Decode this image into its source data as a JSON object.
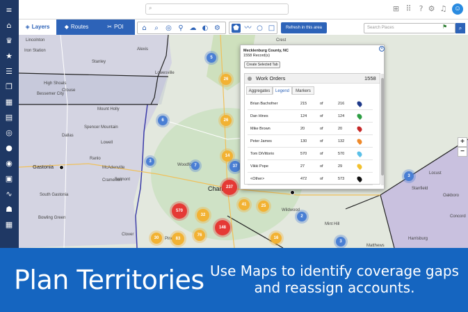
{
  "sidebar": {
    "icons": [
      "menu-icon",
      "home-icon",
      "crown-icon",
      "star-icon",
      "list-icon",
      "copy-icon",
      "building-icon",
      "id-card-icon",
      "target-icon",
      "circle-icon",
      "disc-icon",
      "clipboard-icon",
      "activity-icon",
      "users-icon",
      "calendar-icon"
    ]
  },
  "topbar": {
    "search_placeholder": "",
    "icons": [
      "plus-box-icon",
      "grid-icon",
      "help-icon",
      "gear-icon",
      "bell-icon"
    ],
    "avatar": "☺"
  },
  "tabs": [
    {
      "label": "Layers",
      "icon": "◈"
    },
    {
      "label": "Routes",
      "icon": "◆"
    },
    {
      "label": "POI",
      "icon": "✂"
    }
  ],
  "toolbar": {
    "icons": [
      "⌂",
      "⌕",
      "◎",
      "⚲",
      "☁",
      "◐",
      "⚙"
    ]
  },
  "shape_tools": {
    "icons": [
      "⬟",
      "〰",
      "○",
      "□"
    ]
  },
  "refresh_label": "Refresh in this area",
  "search_places_placeholder": "Search Places",
  "map": {
    "labels": [
      {
        "text": "Lincolnton"
      },
      {
        "text": "Iron Station"
      },
      {
        "text": "Lowesville"
      },
      {
        "text": "Alexis"
      },
      {
        "text": "Stanley"
      },
      {
        "text": "High Shoals"
      },
      {
        "text": "Crouse"
      },
      {
        "text": "Mount Holly"
      },
      {
        "text": "Bessemer City"
      },
      {
        "text": "Dallas"
      },
      {
        "text": "Spencer Mountain"
      },
      {
        "text": "Gastonia"
      },
      {
        "text": "Ranlo"
      },
      {
        "text": "McAdenville"
      },
      {
        "text": "Lowell"
      },
      {
        "text": "Cramerton"
      },
      {
        "text": "Belmont"
      },
      {
        "text": "South Gastonia"
      },
      {
        "text": "Bowling Green"
      },
      {
        "text": "Clover"
      },
      {
        "text": "Charlotte"
      },
      {
        "text": "Woodford"
      },
      {
        "text": "Mint Hill"
      },
      {
        "text": "Wildwood"
      },
      {
        "text": "Stanfield"
      },
      {
        "text": "Locust"
      },
      {
        "text": "Oakboro"
      },
      {
        "text": "Crest"
      },
      {
        "text": "Derita"
      },
      {
        "text": "Concord"
      },
      {
        "text": "Harrisburg"
      },
      {
        "text": "Pineville"
      },
      {
        "text": "Matthews"
      }
    ],
    "clusters": [
      {
        "value": "5",
        "color": "#4a7fd4"
      },
      {
        "value": "26",
        "color": "#f2b233"
      },
      {
        "value": "6",
        "color": "#4a7fd4"
      },
      {
        "value": "26",
        "color": "#f2b233"
      },
      {
        "value": "3",
        "color": "#4a7fd4"
      },
      {
        "value": "14",
        "color": "#f2b233"
      },
      {
        "value": "7",
        "color": "#4a7fd4"
      },
      {
        "value": "37",
        "color": "#4a7fd4"
      },
      {
        "value": "237",
        "color": "#e53935"
      },
      {
        "value": "41",
        "color": "#f2b233"
      },
      {
        "value": "25",
        "color": "#f2b233"
      },
      {
        "value": "570",
        "color": "#e53935"
      },
      {
        "value": "32",
        "color": "#f2b233"
      },
      {
        "value": "148",
        "color": "#e53935"
      },
      {
        "value": "30",
        "color": "#f2b233"
      },
      {
        "value": "83",
        "color": "#f2b233"
      },
      {
        "value": "76",
        "color": "#f2b233"
      },
      {
        "value": "16",
        "color": "#f2b233"
      },
      {
        "value": "2",
        "color": "#4a7fd4"
      },
      {
        "value": "3",
        "color": "#4a7fd4"
      },
      {
        "value": "3",
        "color": "#4a7fd4"
      }
    ]
  },
  "popup": {
    "title": "Mecklenburg County, NC",
    "records": "1558 Record(s)",
    "create_tab_label": "Create Selected Tab",
    "close": "×",
    "panel_title": "Work Orders",
    "panel_count": "1558",
    "tabs": [
      "Aggregates",
      "Legend",
      "Markers"
    ],
    "rows": [
      {
        "name": "Brian Bachofner",
        "count": "215",
        "of": "of",
        "total": "216",
        "color": "#1f3a8a"
      },
      {
        "name": "Dan Hines",
        "count": "124",
        "of": "of",
        "total": "124",
        "color": "#2e9e44"
      },
      {
        "name": "Mike Brown",
        "count": "20",
        "of": "of",
        "total": "20",
        "color": "#c62828"
      },
      {
        "name": "Peter James",
        "count": "130",
        "of": "of",
        "total": "132",
        "color": "#ef8a2b"
      },
      {
        "name": "Tom DiVittorio",
        "count": "570",
        "of": "of",
        "total": "570",
        "color": "#5bc0e8"
      },
      {
        "name": "Vikki Pope",
        "count": "27",
        "of": "of",
        "total": "29",
        "color": "#f2c12e"
      },
      {
        "name": "<Other>",
        "count": "472",
        "of": "of",
        "total": "573",
        "color": "#111111"
      }
    ]
  },
  "zoom": {
    "in": "+",
    "out": "−"
  },
  "banner": {
    "title": "Plan Territories",
    "subtitle": "Use Maps to identify coverage gaps and reassign accounts."
  }
}
